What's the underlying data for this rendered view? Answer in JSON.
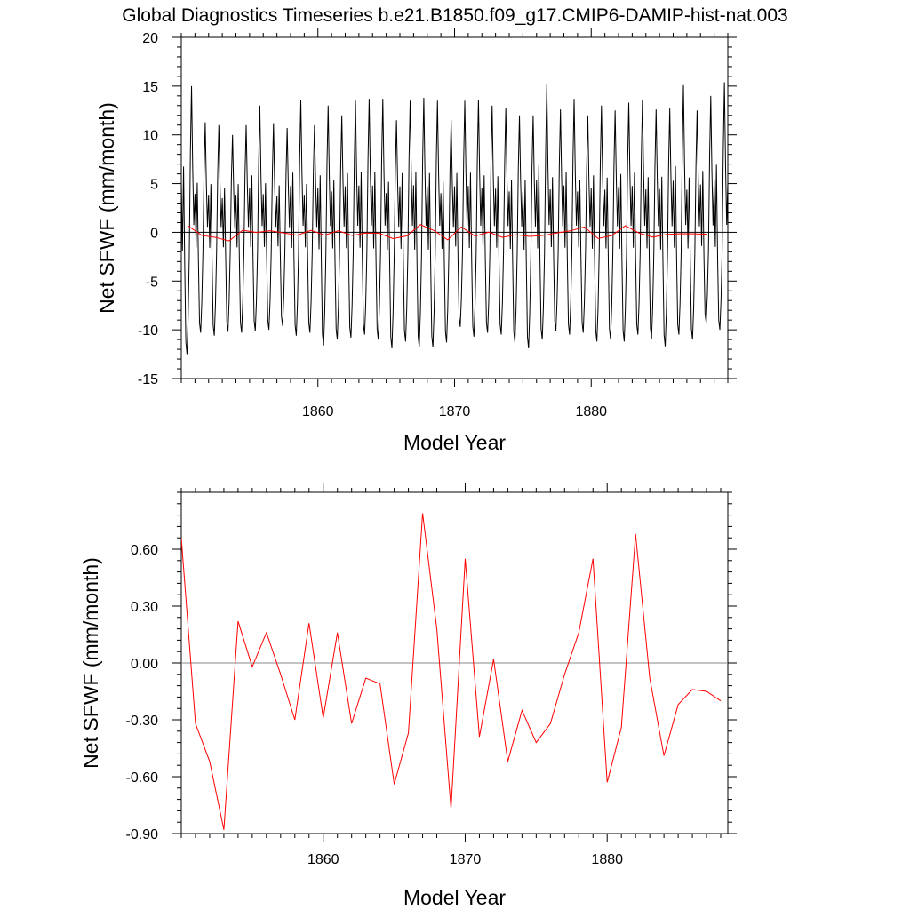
{
  "title": "Global Diagnostics Timeseries b.e21.B1850.f09_g17.CMIP6-DAMIP-hist-nat.003",
  "chart_data": [
    {
      "type": "line",
      "xlabel": "Model Year",
      "ylabel": "Net SFWF (mm/month)",
      "xlim": [
        1850,
        1890
      ],
      "ylim": [
        -15,
        20
      ],
      "xticks": [
        1860,
        1870,
        1880
      ],
      "yticks": [
        -15,
        -10,
        -5,
        0,
        5,
        10,
        15,
        20
      ],
      "ytick_labels": [
        "-15",
        "-10",
        "-5",
        "0",
        "5",
        "10",
        "15",
        "20"
      ],
      "reference_line": 0,
      "series": [
        {
          "color": "#000000",
          "resolution": "monthly",
          "annual_peaks": [
            15,
            11.3,
            11,
            10,
            11,
            13,
            11.2,
            10.7,
            13.6,
            11,
            13,
            12,
            13.5,
            13.7,
            13.7,
            11.5,
            13.5,
            13.8,
            13.5,
            11.5,
            13.5,
            13.6,
            13,
            12.8,
            12,
            12,
            15.2,
            12.6,
            13.7,
            12,
            13,
            12.5,
            13.3,
            13.6,
            12.6,
            12.7,
            15.1,
            12.5,
            14,
            15.4,
            14.6
          ],
          "annual_troughs": [
            -12.5,
            -10.3,
            -10.6,
            -10.2,
            -10.3,
            -10.1,
            -10,
            -9.6,
            -10.6,
            -10.3,
            -11.6,
            -11,
            -10.8,
            -10.5,
            -11,
            -11.9,
            -11.2,
            -11.8,
            -11.8,
            -11.3,
            -9.7,
            -10.7,
            -10.3,
            -10.5,
            -11.3,
            -11.9,
            -11,
            -10.1,
            -10.5,
            -10.3,
            -11.2,
            -11,
            -11.2,
            -10.5,
            -10.9,
            -11.7,
            -10.5,
            -11,
            -9.3,
            -10
          ]
        },
        {
          "color": "#ff0000",
          "resolution": "annual",
          "x": [
            1850,
            1851,
            1852,
            1853,
            1854,
            1855,
            1856,
            1857,
            1858,
            1859,
            1860,
            1861,
            1862,
            1863,
            1864,
            1865,
            1866,
            1867,
            1868,
            1869,
            1870,
            1871,
            1872,
            1873,
            1874,
            1875,
            1876,
            1877,
            1878,
            1879,
            1880,
            1881,
            1882,
            1883,
            1884,
            1885,
            1886,
            1887,
            1888
          ],
          "values": [
            0.66,
            -0.32,
            -0.52,
            -0.88,
            0.22,
            -0.02,
            0.16,
            -0.06,
            -0.3,
            0.21,
            -0.29,
            0.16,
            -0.32,
            -0.08,
            -0.11,
            -0.64,
            -0.37,
            0.79,
            0.18,
            -0.77,
            0.55,
            -0.39,
            0.02,
            -0.52,
            -0.25,
            -0.42,
            -0.32,
            -0.06,
            0.16,
            0.55,
            -0.63,
            -0.34,
            0.68,
            -0.08,
            -0.49,
            -0.22,
            -0.14,
            -0.15,
            -0.2
          ]
        }
      ]
    },
    {
      "type": "line",
      "xlabel": "Model Year",
      "ylabel": "Net SFWF (mm/month)",
      "xlim": [
        1850,
        1888.5
      ],
      "ylim": [
        -0.9,
        0.9
      ],
      "xticks": [
        1860,
        1870,
        1880
      ],
      "yticks": [
        -0.9,
        -0.6,
        -0.3,
        0,
        0.3,
        0.6
      ],
      "ytick_labels": [
        "-0.90",
        "-0.60",
        "-0.30",
        "0.00",
        "0.30",
        "0.60"
      ],
      "reference_line": 0,
      "series": [
        {
          "color": "#ff0000",
          "x": [
            1850,
            1851,
            1852,
            1853,
            1854,
            1855,
            1856,
            1857,
            1858,
            1859,
            1860,
            1861,
            1862,
            1863,
            1864,
            1865,
            1866,
            1867,
            1868,
            1869,
            1870,
            1871,
            1872,
            1873,
            1874,
            1875,
            1876,
            1877,
            1878,
            1879,
            1880,
            1881,
            1882,
            1883,
            1884,
            1885,
            1886,
            1887,
            1888
          ],
          "values": [
            0.66,
            -0.32,
            -0.52,
            -0.88,
            0.22,
            -0.02,
            0.16,
            -0.06,
            -0.3,
            0.21,
            -0.29,
            0.16,
            -0.32,
            -0.08,
            -0.11,
            -0.64,
            -0.37,
            0.79,
            0.18,
            -0.77,
            0.55,
            -0.39,
            0.02,
            -0.52,
            -0.25,
            -0.42,
            -0.32,
            -0.06,
            0.16,
            0.55,
            -0.63,
            -0.34,
            0.68,
            -0.08,
            -0.49,
            -0.22,
            -0.14,
            -0.15,
            -0.2
          ]
        }
      ]
    }
  ]
}
